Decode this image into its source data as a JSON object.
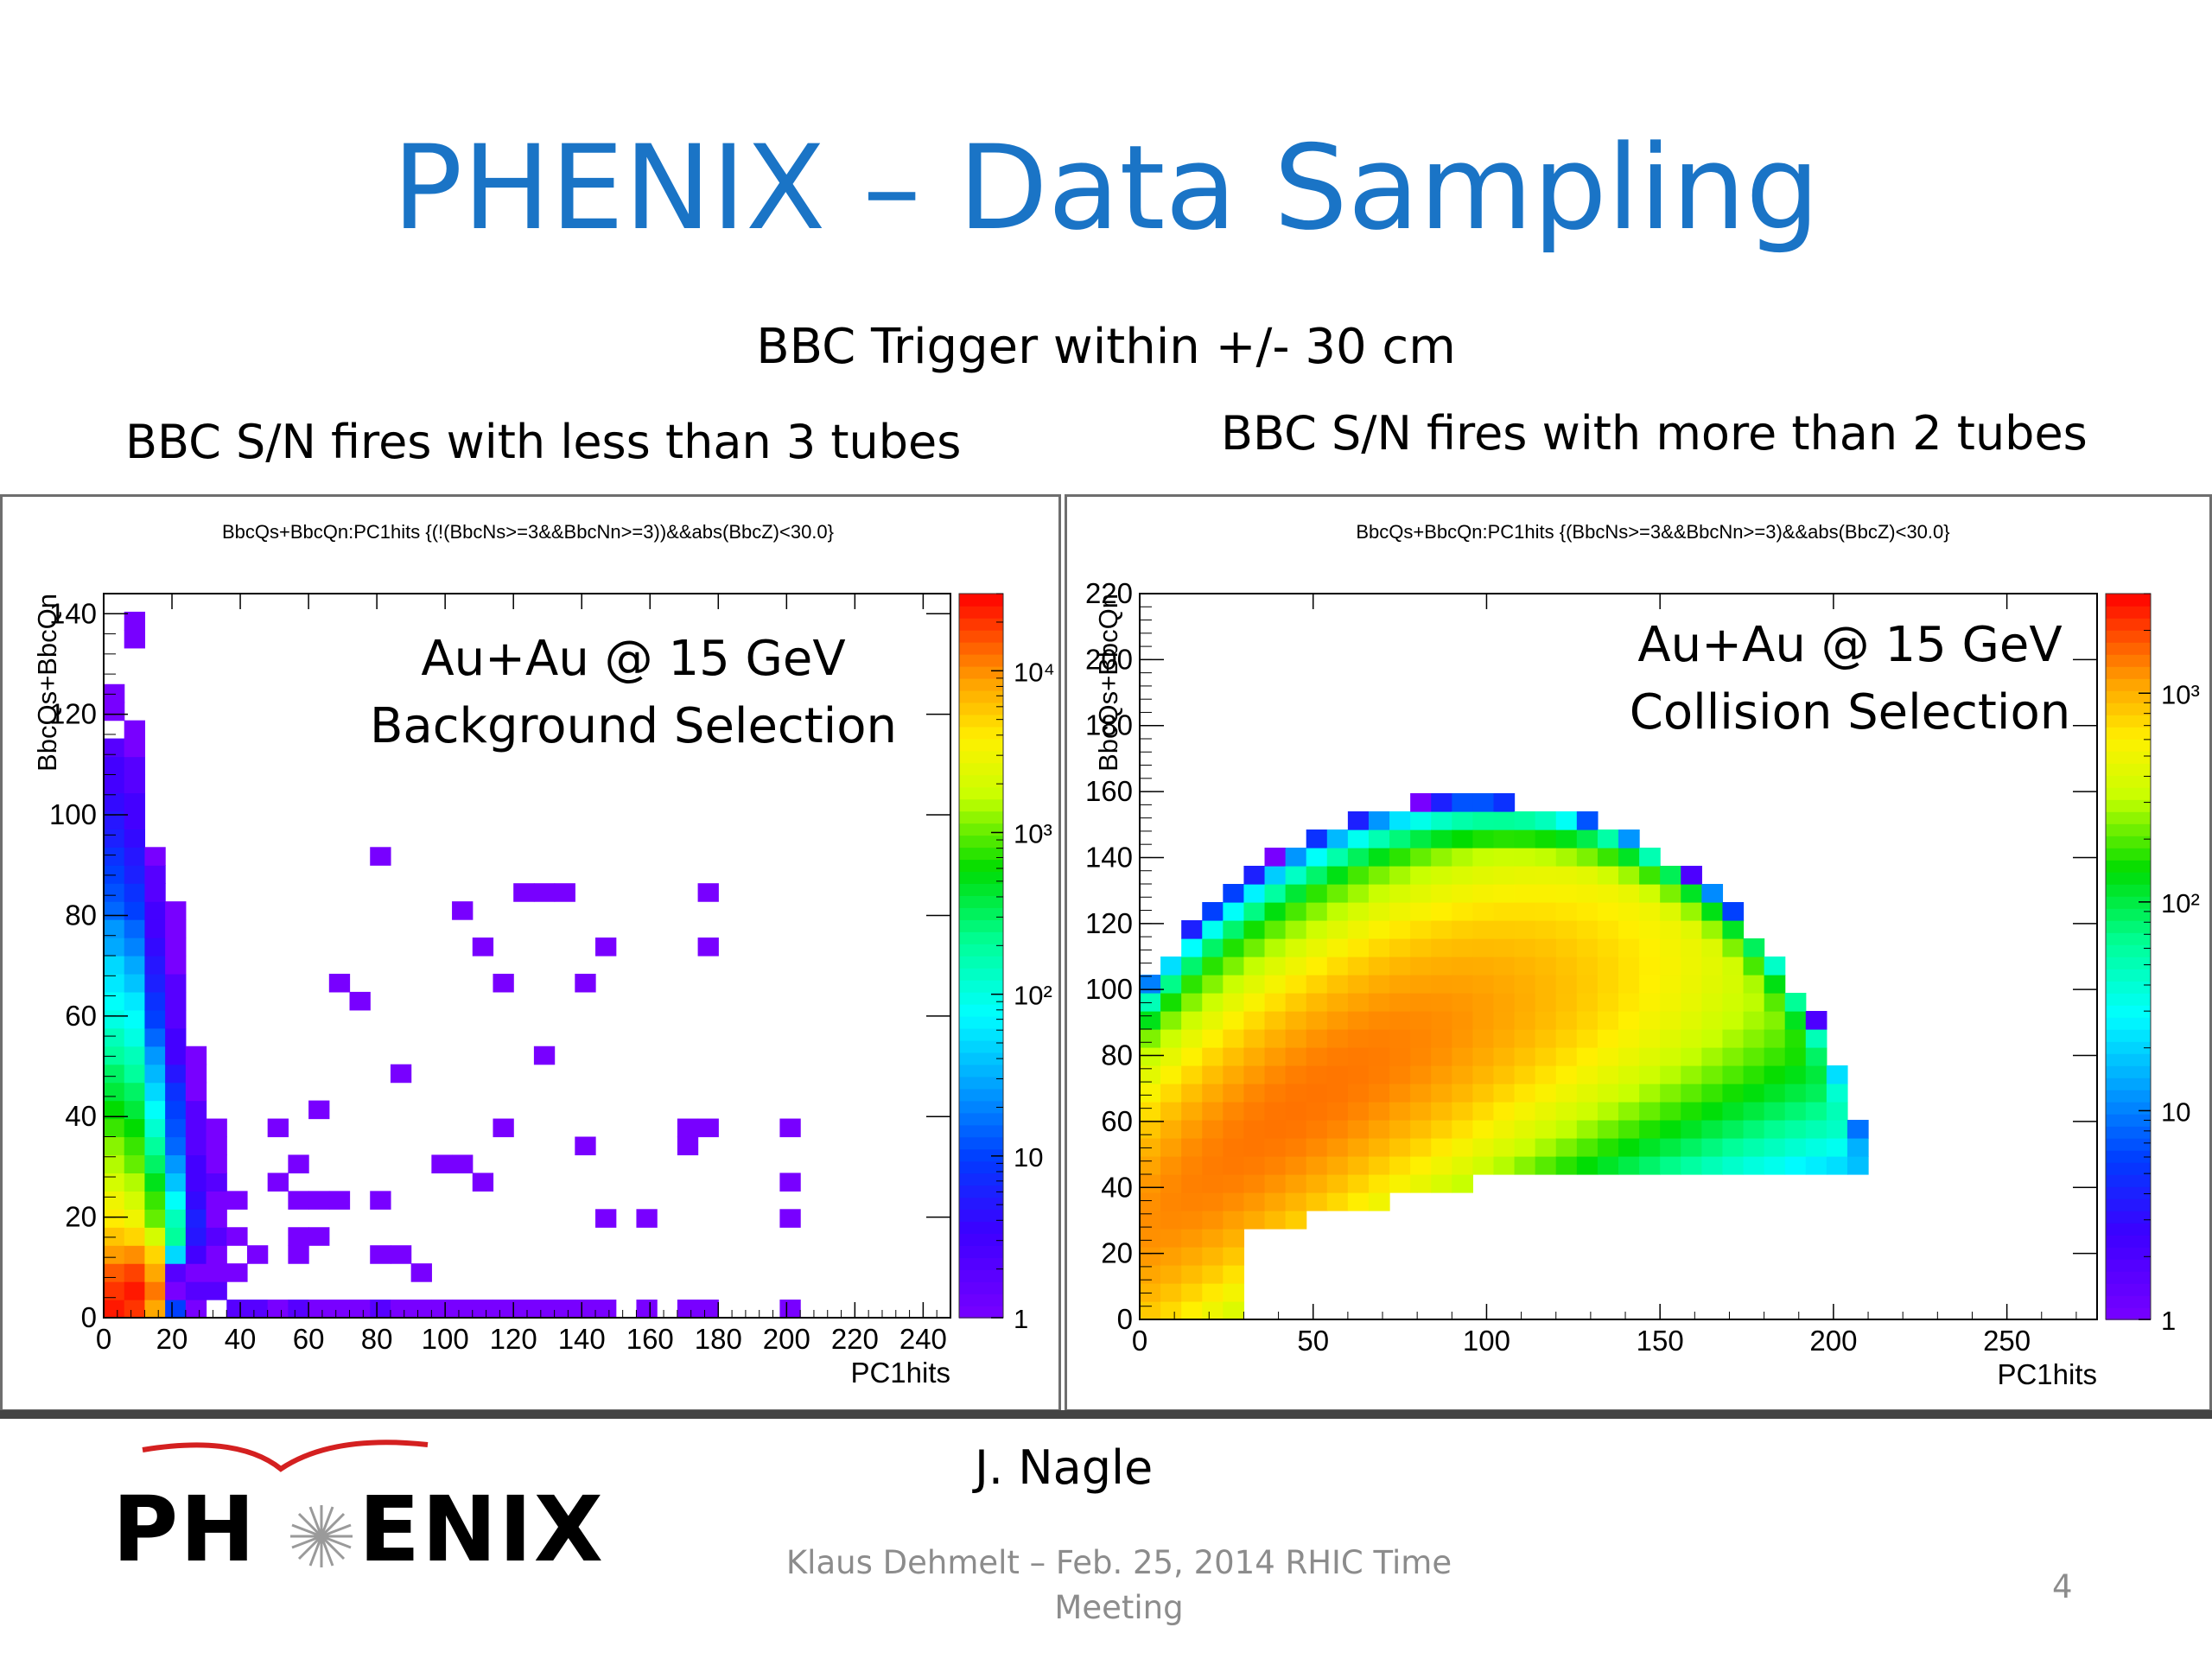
{
  "slide": {
    "title": "PHENIX – Data Sampling",
    "subtitle": "BBC Trigger within +/- 30 cm",
    "left_heading": "BBC S/N fires with less than 3 tubes",
    "right_heading": "BBC S/N fires with more than 2 tubes",
    "author": "J. Nagle",
    "footer": "Klaus Dehmelt – Feb. 25, 2014 RHIC Time Meeting",
    "page_number": "4",
    "logo": {
      "left": "PH",
      "right": "ENIX",
      "arc_color": "#d42020"
    }
  },
  "chart_data": [
    {
      "type": "heatmap",
      "title": "BbcQs+BbcQn:PC1hits {(!(BbcNs>=3&&BbcNn>=3))&&abs(BbcZ)<30.0}",
      "annotation": [
        "Au+Au @ 15 GeV",
        "Background Selection"
      ],
      "xlabel": "PC1hits",
      "ylabel": "BbcQs+BbcQn",
      "xlim": [
        0,
        248
      ],
      "ylim": [
        0,
        144
      ],
      "xticks": [
        0,
        20,
        40,
        60,
        80,
        100,
        120,
        140,
        160,
        180,
        200,
        220,
        240
      ],
      "yticks": [
        0,
        20,
        40,
        60,
        80,
        100,
        120,
        140
      ],
      "z_scale": "log",
      "zlim": [
        1,
        30000
      ],
      "zticks": [
        {
          "value": 1,
          "label": "1"
        },
        {
          "value": 10,
          "label": "10"
        },
        {
          "value": 100,
          "label": "10²"
        },
        {
          "value": 1000,
          "label": "10³"
        },
        {
          "value": 10000,
          "label": "10⁴"
        }
      ],
      "bin_width": [
        6,
        3.6
      ],
      "bins": [
        [
          0,
          0,
          25000
        ],
        [
          0,
          3.6,
          20000
        ],
        [
          0,
          7.2,
          15000
        ],
        [
          0,
          10.8,
          9000
        ],
        [
          0,
          14.4,
          6000
        ],
        [
          0,
          18,
          4000
        ],
        [
          0,
          21.6,
          3000
        ],
        [
          0,
          25.2,
          2000
        ],
        [
          0,
          28.8,
          1500
        ],
        [
          0,
          32.4,
          1200
        ],
        [
          0,
          36,
          800
        ],
        [
          0,
          39.6,
          600
        ],
        [
          0,
          43.2,
          400
        ],
        [
          0,
          46.8,
          300
        ],
        [
          0,
          50.4,
          200
        ],
        [
          0,
          54,
          150
        ],
        [
          0,
          57.6,
          100
        ],
        [
          0,
          61.2,
          80
        ],
        [
          0,
          64.8,
          60
        ],
        [
          0,
          68.4,
          50
        ],
        [
          0,
          72,
          30
        ],
        [
          0,
          75.6,
          25
        ],
        [
          0,
          79.2,
          15
        ],
        [
          0,
          82.8,
          12
        ],
        [
          0,
          86.4,
          10
        ],
        [
          0,
          90,
          8
        ],
        [
          0,
          93.6,
          6
        ],
        [
          0,
          97.2,
          5
        ],
        [
          0,
          100.8,
          4
        ],
        [
          0,
          104.4,
          3
        ],
        [
          0,
          108,
          3
        ],
        [
          0,
          111.6,
          2
        ],
        [
          0,
          118.8,
          1
        ],
        [
          0,
          122.4,
          1
        ],
        [
          6,
          0,
          20000
        ],
        [
          6,
          3.6,
          25000
        ],
        [
          6,
          7.2,
          18000
        ],
        [
          6,
          10.8,
          10000
        ],
        [
          6,
          14.4,
          5000
        ],
        [
          6,
          18,
          3000
        ],
        [
          6,
          21.6,
          2000
        ],
        [
          6,
          25.2,
          1500
        ],
        [
          6,
          28.8,
          1000
        ],
        [
          6,
          32.4,
          800
        ],
        [
          6,
          36,
          600
        ],
        [
          6,
          39.6,
          400
        ],
        [
          6,
          43.2,
          300
        ],
        [
          6,
          46.8,
          200
        ],
        [
          6,
          50.4,
          150
        ],
        [
          6,
          54,
          100
        ],
        [
          6,
          57.6,
          80
        ],
        [
          6,
          61.2,
          60
        ],
        [
          6,
          64.8,
          40
        ],
        [
          6,
          68.4,
          30
        ],
        [
          6,
          72,
          20
        ],
        [
          6,
          75.6,
          15
        ],
        [
          6,
          79.2,
          10
        ],
        [
          6,
          82.8,
          8
        ],
        [
          6,
          86.4,
          6
        ],
        [
          6,
          90,
          5
        ],
        [
          6,
          93.6,
          4
        ],
        [
          6,
          97.2,
          3
        ],
        [
          6,
          100.8,
          3
        ],
        [
          6,
          104.4,
          2
        ],
        [
          6,
          108,
          2
        ],
        [
          6,
          111.6,
          1
        ],
        [
          6,
          115.2,
          1
        ],
        [
          6,
          133.2,
          1
        ],
        [
          6,
          136.8,
          1
        ],
        [
          12,
          0,
          8000
        ],
        [
          12,
          3.6,
          12000
        ],
        [
          12,
          7.2,
          8000
        ],
        [
          12,
          10.8,
          5000
        ],
        [
          12,
          14.4,
          2000
        ],
        [
          12,
          18,
          1000
        ],
        [
          12,
          21.6,
          800
        ],
        [
          12,
          25.2,
          500
        ],
        [
          12,
          28.8,
          300
        ],
        [
          12,
          32.4,
          200
        ],
        [
          12,
          36,
          120
        ],
        [
          12,
          39.6,
          80
        ],
        [
          12,
          43.2,
          50
        ],
        [
          12,
          46.8,
          35
        ],
        [
          12,
          50.4,
          25
        ],
        [
          12,
          54,
          15
        ],
        [
          12,
          57.6,
          10
        ],
        [
          12,
          61.2,
          8
        ],
        [
          12,
          64.8,
          6
        ],
        [
          12,
          68.4,
          5
        ],
        [
          12,
          72,
          4
        ],
        [
          12,
          75.6,
          3
        ],
        [
          12,
          79.2,
          3
        ],
        [
          12,
          82.8,
          2
        ],
        [
          12,
          86.4,
          2
        ],
        [
          12,
          90,
          1
        ],
        [
          18,
          0,
          10
        ],
        [
          18,
          3.6,
          1
        ],
        [
          18,
          7.2,
          2
        ],
        [
          18,
          10.8,
          50
        ],
        [
          18,
          14.4,
          200
        ],
        [
          18,
          18,
          150
        ],
        [
          18,
          21.6,
          80
        ],
        [
          18,
          25.2,
          40
        ],
        [
          18,
          28.8,
          25
        ],
        [
          18,
          32.4,
          15
        ],
        [
          18,
          36,
          12
        ],
        [
          18,
          39.6,
          10
        ],
        [
          18,
          43.2,
          8
        ],
        [
          18,
          46.8,
          5
        ],
        [
          18,
          50.4,
          3
        ],
        [
          18,
          54,
          3
        ],
        [
          18,
          57.6,
          2
        ],
        [
          18,
          61.2,
          2
        ],
        [
          18,
          64.8,
          2
        ],
        [
          18,
          68.4,
          1
        ],
        [
          18,
          72,
          1
        ],
        [
          18,
          75.6,
          1
        ],
        [
          18,
          79.2,
          1
        ],
        [
          24,
          0,
          1
        ],
        [
          24,
          3.6,
          2
        ],
        [
          24,
          7.2,
          1
        ],
        [
          24,
          10.8,
          3
        ],
        [
          24,
          14.4,
          5
        ],
        [
          24,
          18,
          6
        ],
        [
          24,
          21.6,
          4
        ],
        [
          24,
          25.2,
          3
        ],
        [
          24,
          28.8,
          3
        ],
        [
          24,
          32.4,
          2
        ],
        [
          24,
          36,
          2
        ],
        [
          24,
          39.6,
          2
        ],
        [
          24,
          43.2,
          1
        ],
        [
          24,
          46.8,
          1
        ],
        [
          24,
          50.4,
          1
        ],
        [
          30,
          3.6,
          2
        ],
        [
          30,
          7.2,
          1
        ],
        [
          30,
          10.8,
          1
        ],
        [
          30,
          14.4,
          2
        ],
        [
          30,
          18,
          1
        ],
        [
          30,
          21.6,
          1
        ],
        [
          30,
          25.2,
          2
        ],
        [
          30,
          28.8,
          1
        ],
        [
          30,
          32.4,
          1
        ],
        [
          30,
          36,
          1
        ],
        [
          36,
          0,
          2
        ],
        [
          36,
          7.2,
          1
        ],
        [
          36,
          14.4,
          1
        ],
        [
          36,
          21.6,
          1
        ],
        [
          42,
          0,
          2
        ],
        [
          42,
          10.8,
          1
        ],
        [
          48,
          0,
          1
        ],
        [
          48,
          36,
          1
        ],
        [
          48,
          25.2,
          1
        ],
        [
          54,
          0,
          2
        ],
        [
          54,
          14.4,
          1
        ],
        [
          54,
          28.8,
          1
        ],
        [
          54,
          21.6,
          1
        ],
        [
          54,
          10.8,
          1
        ],
        [
          60,
          0,
          1
        ],
        [
          60,
          14.4,
          1
        ],
        [
          60,
          21.6,
          1
        ],
        [
          60,
          39.6,
          1
        ],
        [
          66,
          0,
          1
        ],
        [
          66,
          21.6,
          1
        ],
        [
          66,
          64.8,
          1
        ],
        [
          72,
          0,
          1
        ],
        [
          72,
          61.2,
          1
        ],
        [
          78,
          0,
          2
        ],
        [
          78,
          10.8,
          1
        ],
        [
          78,
          21.6,
          1
        ],
        [
          78,
          90,
          1
        ],
        [
          84,
          0,
          1
        ],
        [
          84,
          10.8,
          1
        ],
        [
          84,
          46.8,
          1
        ],
        [
          90,
          0,
          1
        ],
        [
          90,
          7.2,
          1
        ],
        [
          96,
          0,
          1
        ],
        [
          96,
          28.8,
          1
        ],
        [
          102,
          0,
          1
        ],
        [
          102,
          28.8,
          1
        ],
        [
          102,
          79.2,
          1
        ],
        [
          108,
          0,
          1
        ],
        [
          108,
          25.2,
          1
        ],
        [
          108,
          72,
          1
        ],
        [
          114,
          0,
          1
        ],
        [
          114,
          64.8,
          1
        ],
        [
          114,
          36,
          1
        ],
        [
          120,
          0,
          1
        ],
        [
          120,
          82.8,
          1
        ],
        [
          126,
          0,
          1
        ],
        [
          126,
          82.8,
          1
        ],
        [
          126,
          50.4,
          1
        ],
        [
          132,
          0,
          1
        ],
        [
          132,
          82.8,
          1
        ],
        [
          138,
          0,
          1
        ],
        [
          138,
          32.4,
          1
        ],
        [
          138,
          64.8,
          1
        ],
        [
          144,
          0,
          1
        ],
        [
          144,
          18,
          1
        ],
        [
          144,
          72,
          1
        ],
        [
          156,
          0,
          1
        ],
        [
          156,
          18,
          1
        ],
        [
          168,
          0,
          1
        ],
        [
          168,
          36,
          1
        ],
        [
          168,
          32.4,
          1
        ],
        [
          174,
          0,
          1
        ],
        [
          174,
          72,
          1
        ],
        [
          174,
          36,
          1
        ],
        [
          174,
          82.8,
          1
        ],
        [
          198,
          0,
          1
        ],
        [
          198,
          18,
          1
        ],
        [
          198,
          36,
          1
        ],
        [
          198,
          25.2,
          1
        ]
      ]
    },
    {
      "type": "heatmap",
      "title": "BbcQs+BbcQn:PC1hits {(BbcNs>=3&&BbcNn>=3)&&abs(BbcZ)<30.0}",
      "annotation": [
        "Au+Au @ 15 GeV",
        "Collision Selection"
      ],
      "xlabel": "PC1hits",
      "ylabel": "BbcQs+BbcQn",
      "xlim": [
        0,
        276
      ],
      "ylim": [
        0,
        220
      ],
      "xticks": [
        0,
        50,
        100,
        150,
        200,
        250
      ],
      "yticks": [
        0,
        20,
        40,
        60,
        80,
        100,
        120,
        140,
        160,
        180,
        200,
        220
      ],
      "z_scale": "log",
      "zlim": [
        1,
        3000
      ],
      "zticks": [
        {
          "value": 1,
          "label": "1"
        },
        {
          "value": 10,
          "label": "10"
        },
        {
          "value": 100,
          "label": "10²"
        },
        {
          "value": 1000,
          "label": "10³"
        }
      ],
      "bin_width": [
        6,
        5.5
      ],
      "ridge_peak": {
        "x": 45,
        "y": 70,
        "counts": 1500
      }
    }
  ]
}
